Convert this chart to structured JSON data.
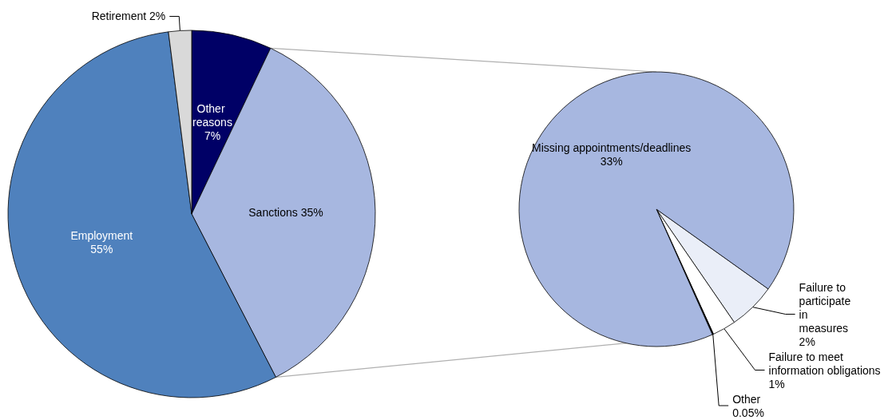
{
  "chart_data": [
    {
      "type": "pie",
      "categories": [
        "Other reasons",
        "Sanctions",
        "Employment",
        "Retirement"
      ],
      "values": [
        7,
        35,
        55,
        2
      ],
      "colors": [
        "#000066",
        "#a7b7e0",
        "#4f81bd",
        "#d9d9d9"
      ],
      "value_labels": [
        "7%",
        "35%",
        "55%",
        "2%"
      ]
    },
    {
      "type": "pie",
      "categories": [
        "Failure to participate in measures",
        "Failure to meet information obligations",
        "Other",
        "Missing appointments/deadlines"
      ],
      "values": [
        2,
        1,
        0.05,
        33
      ],
      "colors": [
        "#eaeef8",
        "#ffffff",
        "#000000",
        "#a7b7e0"
      ],
      "value_labels": [
        "2%",
        "1%",
        "0.05%",
        "33%"
      ]
    }
  ]
}
